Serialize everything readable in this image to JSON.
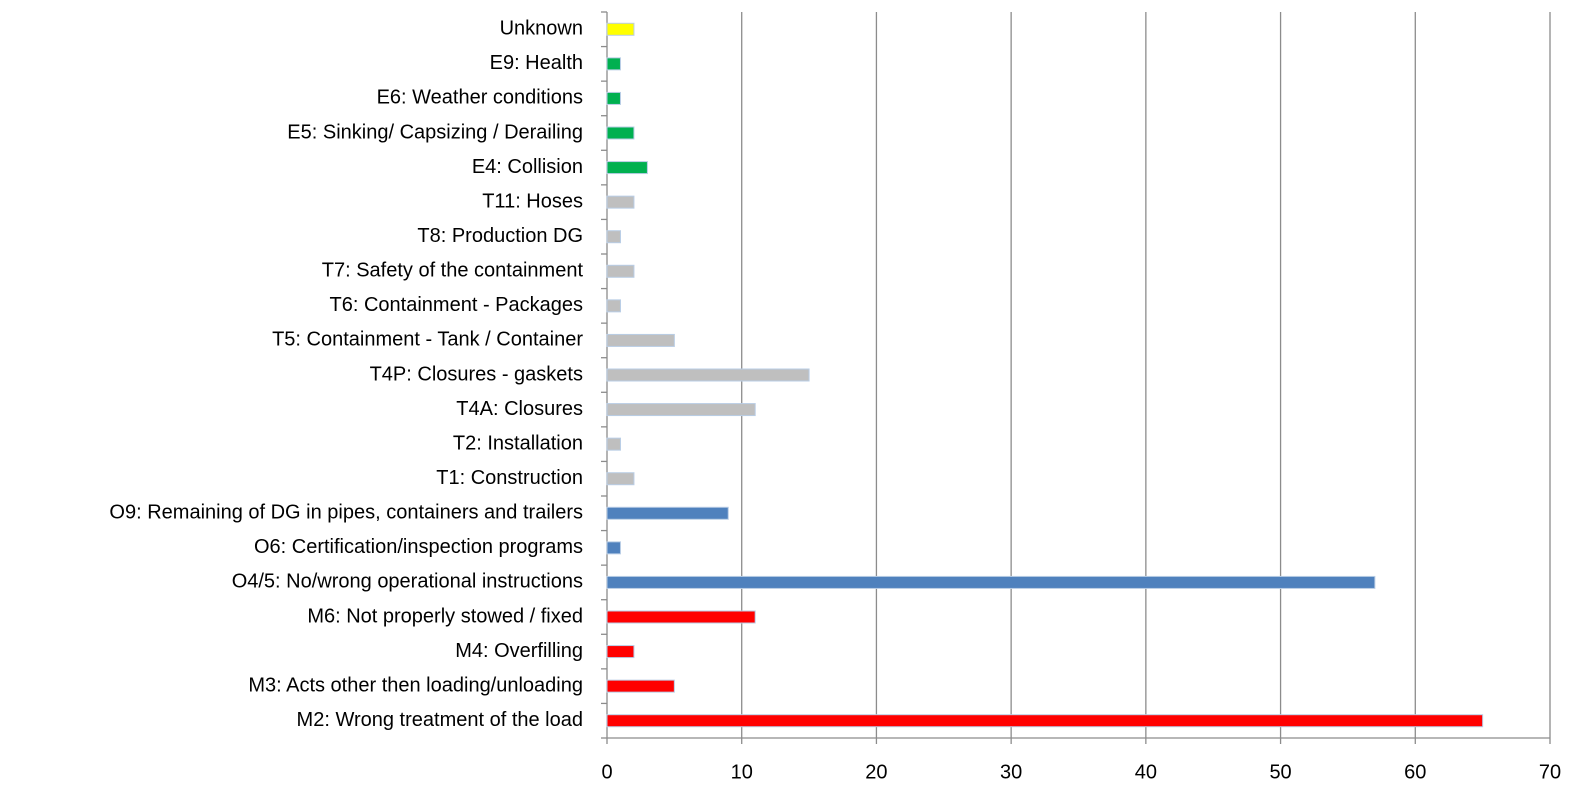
{
  "chart_data": {
    "type": "bar",
    "orientation": "horizontal",
    "categories": [
      "Unknown",
      "E9: Health",
      "E6: Weather conditions",
      "E5: Sinking/ Capsizing / Derailing",
      "E4: Collision",
      "T11: Hoses",
      "T8: Production DG",
      "T7: Safety of the containment",
      "T6: Containment - Packages",
      "T5: Containment - Tank / Container",
      "T4P: Closures - gaskets",
      "T4A: Closures",
      "T2: Installation",
      "T1: Construction",
      "O9: Remaining of DG in pipes, containers and trailers",
      "O6: Certification/inspection programs",
      "O4/5: No/wrong operational instructions",
      "M6: Not properly stowed / fixed",
      "M4: Overfilling",
      "M3: Acts other then loading/unloading",
      "M2: Wrong treatment of the load"
    ],
    "values": [
      2,
      1,
      1,
      2,
      3,
      2,
      1,
      2,
      1,
      5,
      15,
      11,
      1,
      2,
      9,
      1,
      57,
      11,
      2,
      5,
      65
    ],
    "colors": [
      "#ffff00",
      "#00b050",
      "#00b050",
      "#00b050",
      "#00b050",
      "#bfbfbf",
      "#bfbfbf",
      "#bfbfbf",
      "#bfbfbf",
      "#bfbfbf",
      "#bfbfbf",
      "#bfbfbf",
      "#bfbfbf",
      "#bfbfbf",
      "#4f81bd",
      "#4f81bd",
      "#4f81bd",
      "#ff0000",
      "#ff0000",
      "#ff0000",
      "#ff0000"
    ],
    "xlim": [
      0,
      70
    ],
    "xticks": [
      0,
      10,
      20,
      30,
      40,
      50,
      60,
      70
    ],
    "grid": true
  }
}
